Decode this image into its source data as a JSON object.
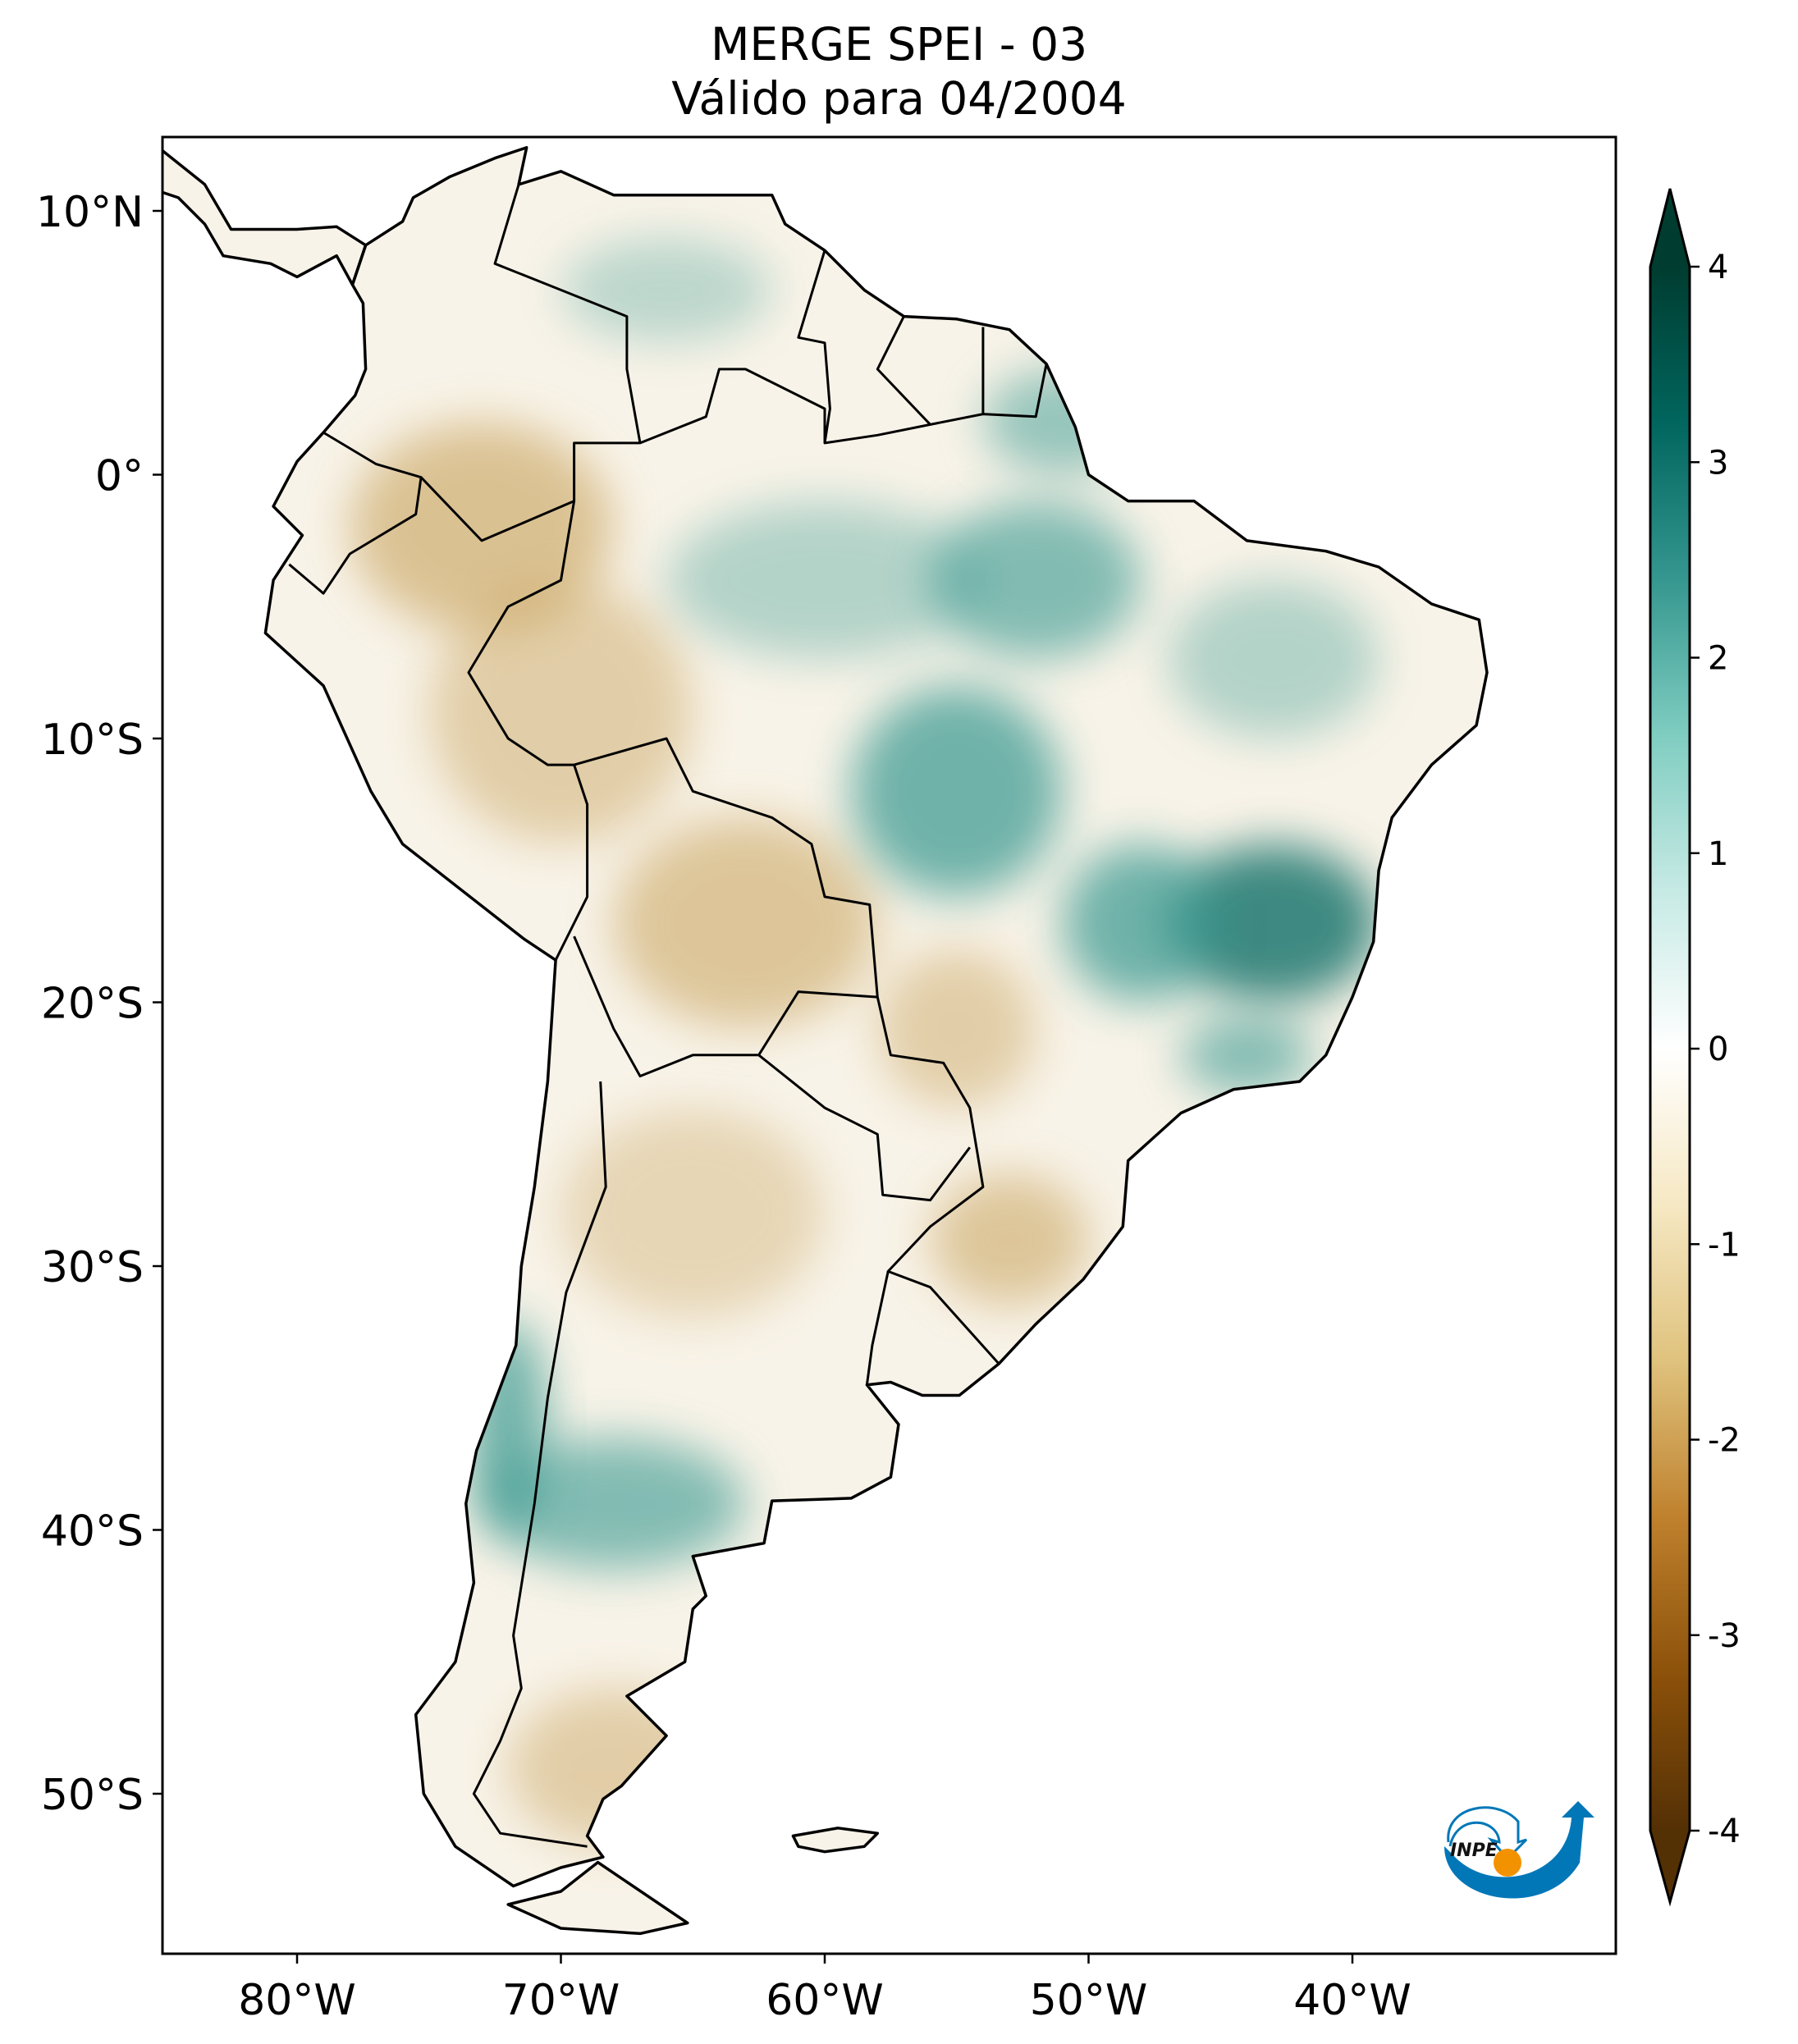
{
  "title": {
    "line1": "MERGE   SPEI - 03",
    "line2": "Válido para 04/2004"
  },
  "map": {
    "lon_range": [
      -85,
      -30
    ],
    "lat_range": [
      -56,
      13
    ],
    "x_ticks": [
      {
        "lon": -80,
        "label": "80°W"
      },
      {
        "lon": -70,
        "label": "70°W"
      },
      {
        "lon": -60,
        "label": "60°W"
      },
      {
        "lon": -50,
        "label": "50°W"
      },
      {
        "lon": -40,
        "label": "40°W"
      }
    ],
    "y_ticks": [
      {
        "lat": 10,
        "label": "10°N"
      },
      {
        "lat": 0,
        "label": "0°"
      },
      {
        "lat": -10,
        "label": "10°S"
      },
      {
        "lat": -20,
        "label": "20°S"
      },
      {
        "lat": -30,
        "label": "30°S"
      },
      {
        "lat": -40,
        "label": "40°S"
      },
      {
        "lat": -50,
        "label": "50°S"
      }
    ],
    "wet_color": "#35978f",
    "dry_color": "#c7a15a"
  },
  "colorbar": {
    "range": [
      -4,
      4
    ],
    "extend": "both",
    "ticks": [
      {
        "v": 4,
        "label": "4"
      },
      {
        "v": 3,
        "label": "3"
      },
      {
        "v": 2,
        "label": "2"
      },
      {
        "v": 1,
        "label": "1"
      },
      {
        "v": 0,
        "label": "0"
      },
      {
        "v": -1,
        "label": "-1"
      },
      {
        "v": -2,
        "label": "-2"
      },
      {
        "v": -3,
        "label": "-3"
      },
      {
        "v": -4,
        "label": "-4"
      }
    ],
    "colormap": "BrBG",
    "stops": [
      "#543005",
      "#8c510a",
      "#bf812d",
      "#dfc27d",
      "#f6e8c3",
      "#ffffff",
      "#c7eae5",
      "#80cdc1",
      "#35978f",
      "#01665e",
      "#003c30"
    ]
  },
  "logo": {
    "text": "INPE",
    "blue": "#0277b8",
    "orange": "#f39200"
  }
}
